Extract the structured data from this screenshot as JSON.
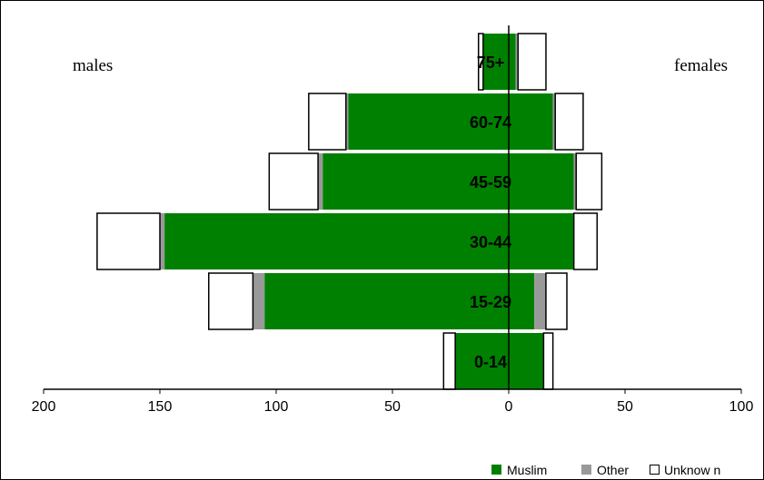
{
  "chart_data": {
    "type": "bar",
    "orientation": "horizontal-population-pyramid",
    "title": "",
    "xlabel": "",
    "ylabel": "",
    "side_labels": {
      "left": "males",
      "right": "females"
    },
    "categories": [
      "0-14",
      "15-29",
      "30-44",
      "45-59",
      "60-74",
      "75+"
    ],
    "x_ticks": [
      {
        "value": -200,
        "label": "200"
      },
      {
        "value": -150,
        "label": "150"
      },
      {
        "value": -100,
        "label": "100"
      },
      {
        "value": -50,
        "label": "50"
      },
      {
        "value": 0,
        "label": "0"
      },
      {
        "value": 50,
        "label": "50"
      },
      {
        "value": 100,
        "label": "100"
      }
    ],
    "xlim": [
      -200,
      100
    ],
    "series": [
      {
        "name": "Muslim",
        "color": "#008000",
        "males": [
          23,
          105,
          148,
          80,
          69,
          11
        ],
        "females": [
          15,
          11,
          28,
          28,
          19,
          3
        ]
      },
      {
        "name": "Other",
        "color": "#999999",
        "males": [
          0,
          5,
          2,
          2,
          1,
          0
        ],
        "females": [
          0,
          5,
          0,
          1,
          1,
          1
        ]
      },
      {
        "name": "Unknow n",
        "color": "#ffffff",
        "males": [
          5,
          19,
          27,
          21,
          16,
          2
        ],
        "females": [
          4,
          9,
          10,
          11,
          12,
          12
        ]
      }
    ],
    "grid": false,
    "legend_position": "bottom-right"
  }
}
